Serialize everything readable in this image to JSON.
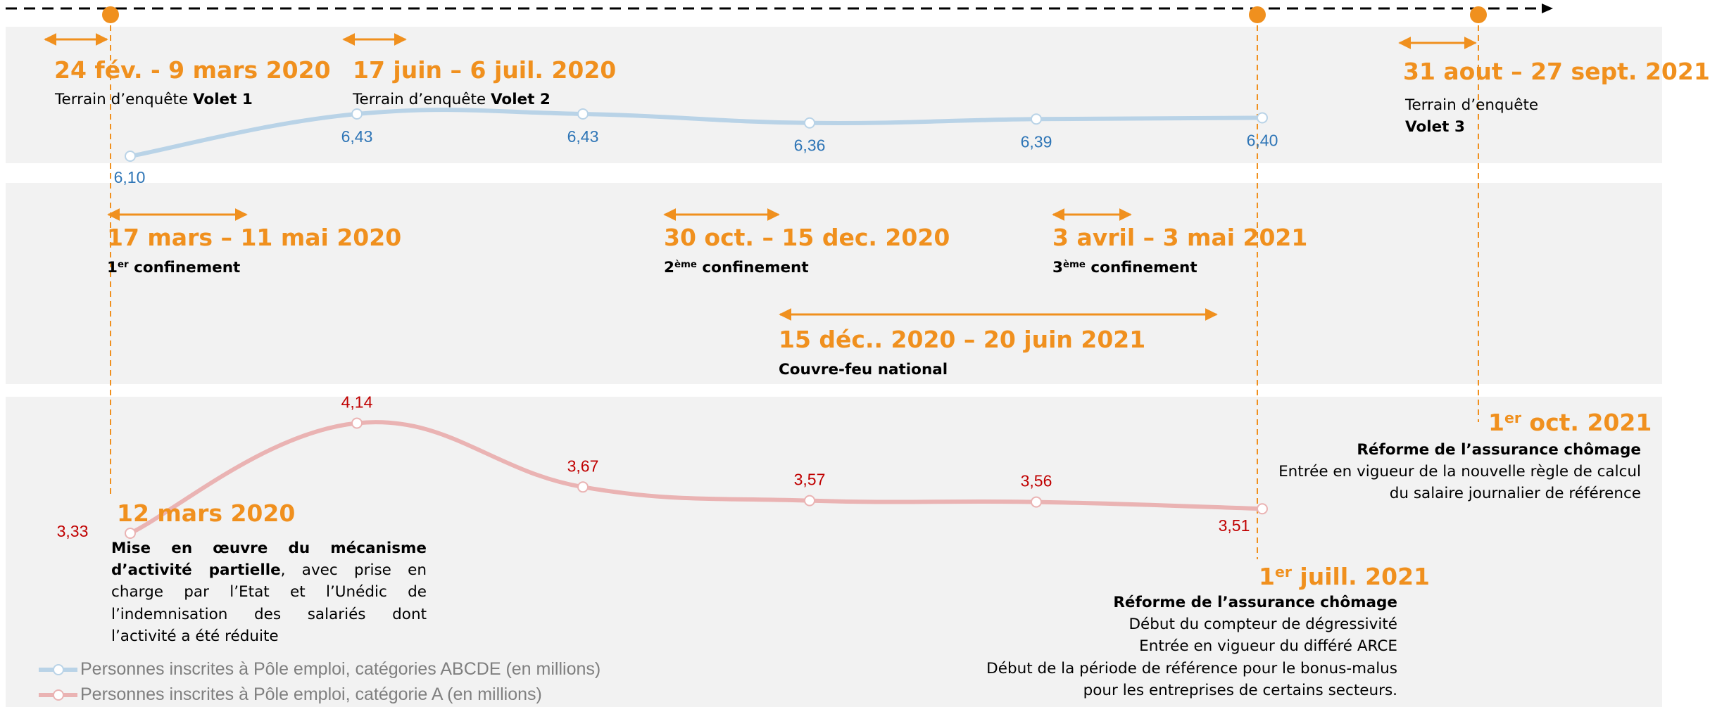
{
  "colors": {
    "accent": "#f0901e",
    "series_abcde": "#b9d3e7",
    "series_a": "#eab3b3",
    "label_abcde": "#2e75b6",
    "label_a": "#c00000",
    "band": "#f2f2f2"
  },
  "periods": {
    "volet1": {
      "date": "24 fév. - 9 mars 2020",
      "text": "Terrain d’enquête ",
      "bold": "Volet 1"
    },
    "volet2": {
      "date": "17 juin – 6 juil. 2020",
      "text": "Terrain d’enquête ",
      "bold": "Volet 2"
    },
    "volet3": {
      "date": "31 aout – 27 sept. 2021",
      "text": "Terrain d’enquête",
      "bold": "Volet 3"
    },
    "conf1": {
      "date": "17 mars – 11 mai 2020",
      "num": "1",
      "sup": "er",
      "label": " confinement"
    },
    "conf2": {
      "date": "30 oct. – 15 dec. 2020",
      "num": "2",
      "sup": "ème",
      "label": " confinement"
    },
    "conf3": {
      "date": "3 avril – 3 mai 2021",
      "num": "3",
      "sup": "ème",
      "label": " confinement"
    },
    "curfew": {
      "date": "15 déc.. 2020 – 20 juin 2021",
      "label": "Couvre-feu national"
    }
  },
  "events": {
    "mar2020": {
      "date": "12 mars 2020",
      "bold": "Mise en œuvre du mécanisme d’activité partielle",
      "text": ", avec prise en charge par l’Etat et l’Unédic de l’indemnisation des salariés dont l’activité a été réduite"
    },
    "jul2021": {
      "date_num": "1",
      "date_sup": "er",
      "date_rest": " juill. 2021",
      "title": "Réforme de l’assurance chômage",
      "lines": [
        "Début du compteur de dégressivité",
        "Entrée en vigueur du différé ARCE",
        "Début de la période de référence pour le bonus-malus",
        "pour les entreprises de certains secteurs."
      ]
    },
    "oct2021": {
      "date_num": "1",
      "date_sup": "er",
      "date_rest": " oct. 2021",
      "title": "Réforme de l’assurance chômage",
      "lines": [
        "Entrée en vigueur de la nouvelle règle de calcul",
        "du salaire journalier de référence"
      ]
    }
  },
  "chart_data": {
    "type": "line",
    "series": [
      {
        "name": "Personnes inscrites à Pôle emploi, catégories ABCDE (en millions)",
        "values": [
          6.1,
          6.43,
          6.43,
          6.36,
          6.39,
          6.4
        ],
        "labels": [
          "6,10",
          "6,43",
          "6,43",
          "6,36",
          "6,39",
          "6,40"
        ]
      },
      {
        "name": "Personnes inscrites à Pôle emploi, catégorie A (en millions)",
        "values": [
          3.33,
          4.14,
          3.67,
          3.57,
          3.56,
          3.51
        ],
        "labels": [
          "3,33",
          "4,14",
          "3,67",
          "3,57",
          "3,56",
          "3,51"
        ]
      }
    ],
    "legend_placement": "bottom-left"
  }
}
